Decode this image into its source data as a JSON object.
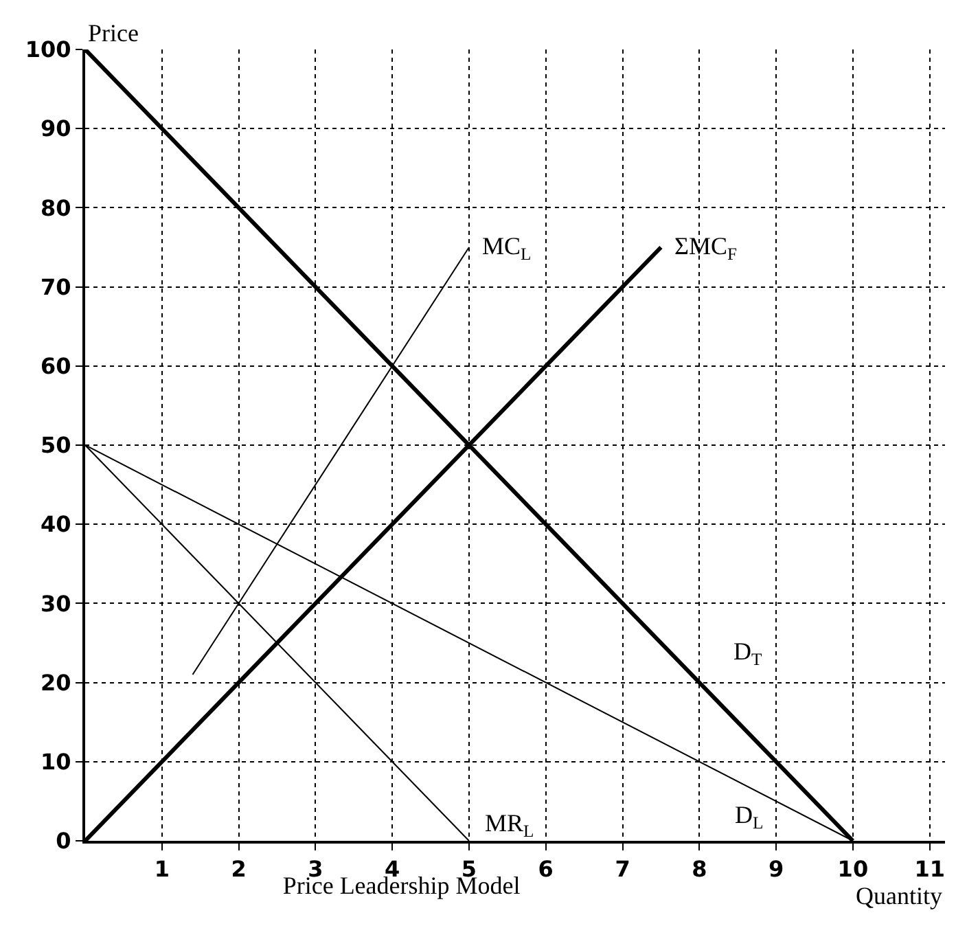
{
  "chart_data": {
    "type": "line",
    "title": "Price Leadership Model",
    "xlabel": "Quantity",
    "ylabel": "Price",
    "xlim": [
      0,
      11.2
    ],
    "ylim": [
      0,
      100
    ],
    "xticks": [
      1,
      2,
      3,
      4,
      5,
      6,
      7,
      8,
      9,
      10,
      11
    ],
    "yticks": [
      0,
      10,
      20,
      30,
      40,
      50,
      60,
      70,
      80,
      90,
      100
    ],
    "grid": true,
    "legend": false,
    "marker": "none",
    "line_style": "solid",
    "tick_labels": "xy",
    "series": [
      {
        "name": "D$_{T}$",
        "color": "#000000",
        "x": [
          0,
          10
        ],
        "values": [
          100,
          0
        ]
      },
      {
        "name": "ΣMC$_{F}$",
        "color": "#000000",
        "x": [
          0,
          7.5
        ],
        "values": [
          0,
          75
        ]
      },
      {
        "name": "MC$_{L}$",
        "color": "#000000",
        "x": [
          1.4,
          5
        ],
        "values": [
          21,
          75
        ]
      },
      {
        "name": "MR$_{L}$",
        "color": "#000000",
        "x": [
          0,
          5
        ],
        "values": [
          50,
          0
        ]
      },
      {
        "name": "D$_{L}$",
        "color": "#000000",
        "x": [
          0,
          10
        ],
        "values": [
          50,
          0
        ]
      }
    ]
  }
}
